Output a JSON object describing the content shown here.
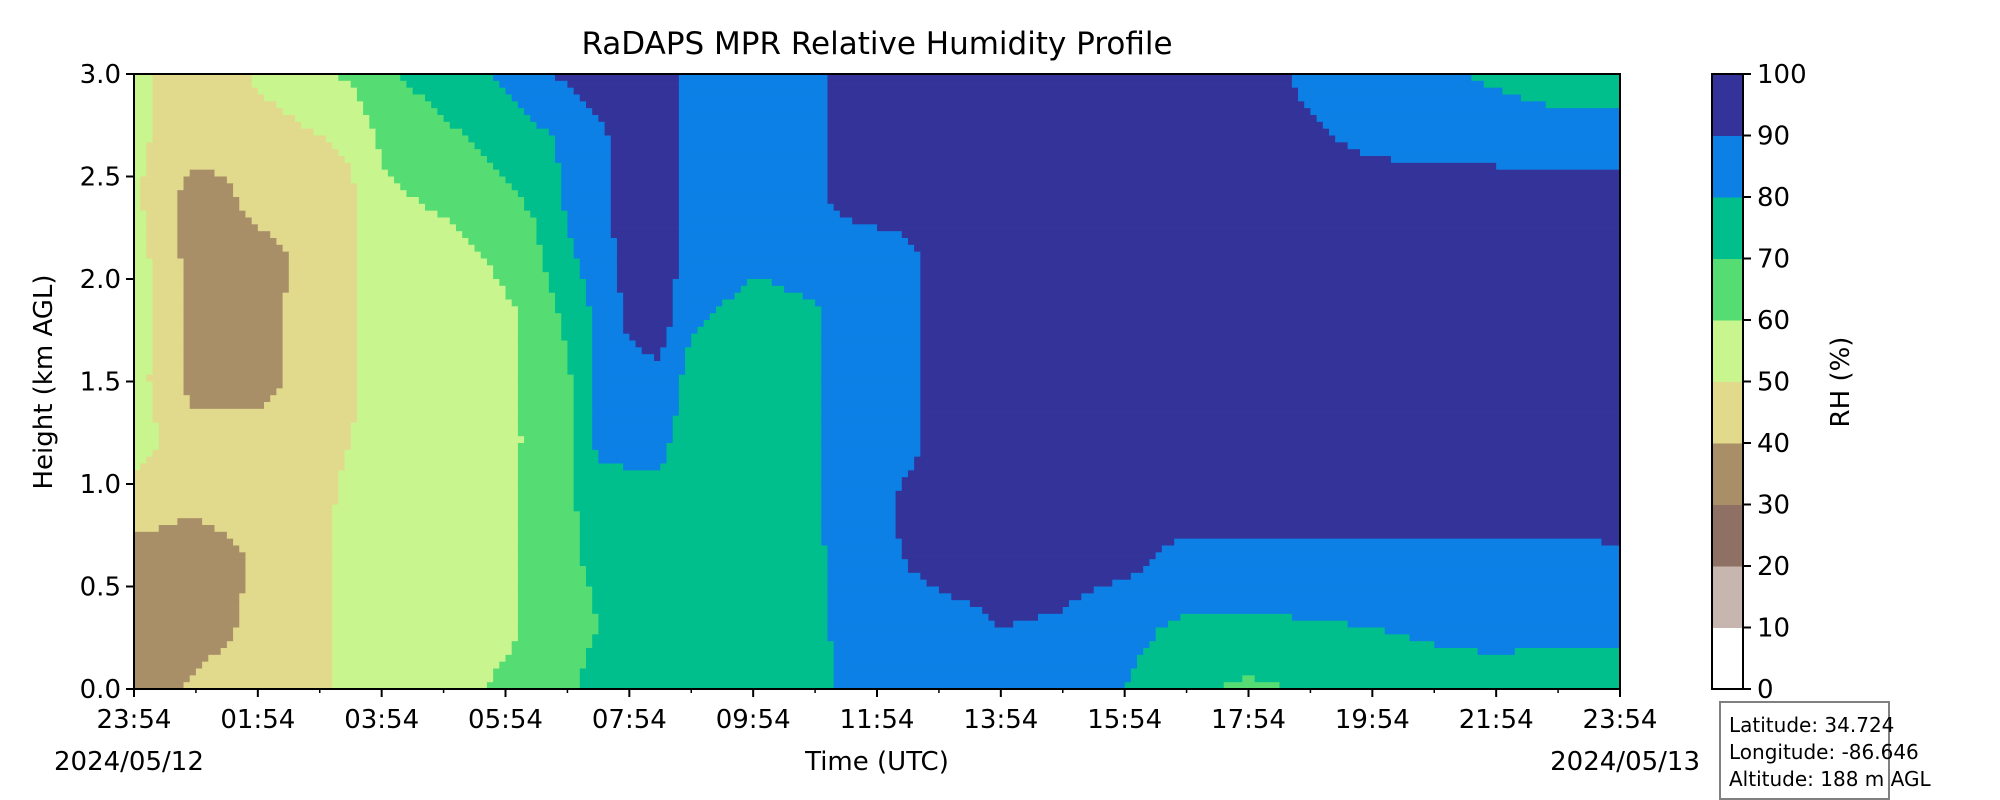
{
  "chart_data": {
    "type": "heatmap",
    "subtype": "filled-contour",
    "title": "RaDAPS MPR Relative Humidity Profile",
    "xlabel": "Time (UTC)",
    "ylabel": "Height (km AGL)",
    "ylim": [
      0,
      3
    ],
    "y_ticks": [
      "0.0",
      "0.5",
      "1.0",
      "1.5",
      "2.0",
      "2.5",
      "3.0"
    ],
    "x_ticks": [
      "23:54",
      "01:54",
      "03:54",
      "05:54",
      "07:54",
      "09:54",
      "11:54",
      "13:54",
      "15:54",
      "17:54",
      "19:54",
      "21:54",
      "23:54"
    ],
    "x_range_hours": [
      0,
      24
    ],
    "start_date": "2024/05/12",
    "end_date": "2024/05/13",
    "colorbar": {
      "label": "RH (%)",
      "levels": [
        0,
        10,
        20,
        30,
        40,
        50,
        60,
        70,
        80,
        90,
        100
      ],
      "tick_labels": [
        "0",
        "10",
        "20",
        "30",
        "40",
        "50",
        "60",
        "70",
        "80",
        "90",
        "100"
      ],
      "colors": [
        "#ffffff",
        "#c7b6b0",
        "#8f7064",
        "#a88f68",
        "#e1d98b",
        "#c9f58f",
        "#55dd73",
        "#00bf8c",
        "#0d80e6",
        "#333399"
      ]
    },
    "rh_grid": {
      "heights_km": [
        0.0,
        0.3,
        0.6,
        0.9,
        1.2,
        1.5,
        1.8,
        2.1,
        2.4,
        2.7,
        3.0
      ],
      "hours": [
        0,
        1,
        1.5,
        2,
        3,
        3.5,
        4,
        5,
        6,
        6.5,
        7,
        7.5,
        8,
        8.5,
        9,
        10,
        10.5,
        11,
        11.5,
        12,
        12.5,
        13,
        14,
        15,
        16,
        17,
        18,
        19,
        20,
        21,
        22,
        23,
        24
      ],
      "values": [
        [
          35,
          42,
          45,
          45,
          48,
          52,
          55,
          55,
          62,
          64,
          68,
          75,
          75,
          75,
          75,
          78,
          75,
          75,
          82,
          86,
          86,
          86,
          87,
          86,
          80,
          72,
          68,
          71,
          73,
          75,
          76,
          75,
          75
        ],
        [
          35,
          35,
          38,
          45,
          48,
          52,
          55,
          55,
          58,
          62,
          65,
          70,
          75,
          75,
          73,
          74,
          75,
          75,
          86,
          87,
          87,
          87,
          90,
          89,
          83,
          78,
          78,
          79,
          80,
          82,
          83,
          82,
          82
        ],
        [
          35,
          32,
          35,
          42,
          48,
          52,
          55,
          55,
          58,
          62,
          68,
          72,
          76,
          75,
          72,
          72,
          75,
          76,
          88,
          88,
          90,
          92,
          93,
          93,
          92,
          86,
          86,
          87,
          86,
          87,
          87,
          86,
          88
        ],
        [
          45,
          42,
          45,
          45,
          48,
          52,
          55,
          55,
          58,
          62,
          68,
          75,
          76,
          78,
          75,
          75,
          78,
          78,
          88,
          88,
          92,
          93,
          94,
          94,
          94,
          94,
          94,
          94,
          94,
          94,
          94,
          94,
          94
        ],
        [
          54,
          45,
          45,
          45,
          48,
          50,
          55,
          55,
          58,
          62,
          68,
          82,
          83,
          82,
          75,
          75,
          78,
          78,
          85,
          85,
          88,
          93,
          94,
          94,
          94,
          94,
          94,
          94,
          94,
          94,
          94,
          94,
          94
        ],
        [
          55,
          35,
          35,
          35,
          47,
          48,
          55,
          55,
          58,
          62,
          68,
          82,
          86,
          88,
          75,
          75,
          78,
          78,
          85,
          86,
          88,
          93,
          94,
          94,
          94,
          94,
          94,
          94,
          94,
          94,
          94,
          94,
          94
        ],
        [
          55,
          35,
          35,
          35,
          47,
          48,
          55,
          55,
          58,
          62,
          72,
          82,
          92,
          94,
          82,
          75,
          78,
          78,
          85,
          86,
          88,
          93,
          94,
          94,
          94,
          94,
          94,
          94,
          94,
          94,
          94,
          94,
          94
        ],
        [
          55,
          35,
          35,
          35,
          45,
          48,
          55,
          56,
          62,
          68,
          78,
          85,
          94,
          94,
          88,
          82,
          82,
          84,
          85,
          86,
          88,
          93,
          94,
          94,
          94,
          94,
          94,
          94,
          94,
          94,
          94,
          94,
          94
        ],
        [
          52,
          35,
          38,
          45,
          45,
          48,
          58,
          62,
          68,
          72,
          82,
          88,
          94,
          94,
          88,
          88,
          88,
          88,
          93,
          94,
          94,
          94,
          94,
          94,
          94,
          94,
          94,
          94,
          94,
          94,
          94,
          94,
          94
        ],
        [
          52,
          45,
          45,
          45,
          50,
          52,
          62,
          68,
          74,
          78,
          82,
          88,
          94,
          94,
          88,
          88,
          88,
          88,
          93,
          94,
          94,
          94,
          94,
          94,
          94,
          94,
          94,
          91,
          88,
          86,
          86,
          84,
          84
        ],
        [
          52,
          45,
          45,
          52,
          58,
          62,
          68,
          75,
          82,
          88,
          92,
          95,
          94,
          94,
          88,
          88,
          88,
          88,
          93,
          94,
          94,
          94,
          94,
          94,
          94,
          94,
          94,
          88,
          85,
          82,
          78,
          75,
          75
        ]
      ]
    }
  },
  "info": {
    "latitude": "Latitude: 34.724",
    "longitude": "Longitude: -86.646",
    "altitude": "Altitude: 188 m AGL"
  }
}
